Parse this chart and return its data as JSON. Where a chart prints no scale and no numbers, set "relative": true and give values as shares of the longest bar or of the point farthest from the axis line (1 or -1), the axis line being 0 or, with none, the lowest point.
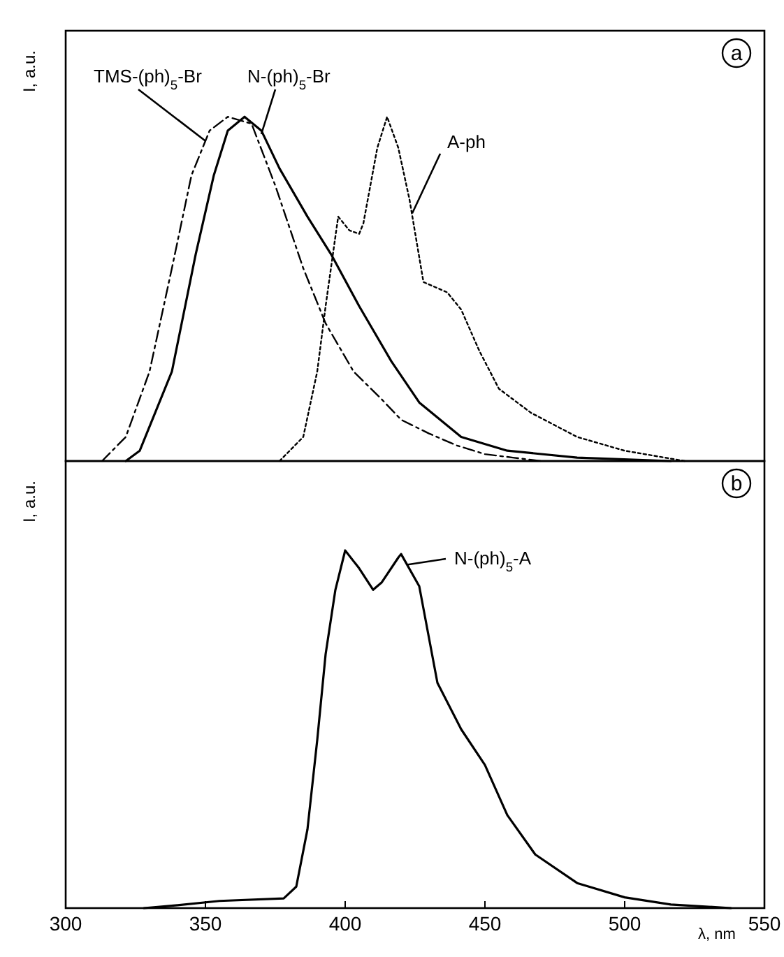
{
  "chart_data": [
    {
      "type": "line",
      "ylabel": "I, a.u.",
      "annotations": [
        "a"
      ],
      "relative": true,
      "xlim": [
        300,
        550
      ],
      "xticks": [
        300,
        350,
        400,
        450,
        500,
        550
      ],
      "tick_labels": false,
      "series": [
        {
          "name": "TMS-(ph)$_{5}$-Br",
          "color": "#000000",
          "line_style": "dashed",
          "x": [
            313,
            321.5,
            330,
            338,
            345,
            351.5,
            358,
            366.5,
            375,
            385,
            393,
            403,
            413,
            420,
            430,
            440,
            450,
            460,
            470
          ],
          "values": [
            0,
            0.07,
            0.26,
            0.56,
            0.83,
            0.96,
            1.0,
            0.98,
            0.8,
            0.56,
            0.4,
            0.26,
            0.18,
            0.12,
            0.08,
            0.045,
            0.02,
            0.01,
            0
          ]
        },
        {
          "name": "N-(ph)$_{5}$-Br",
          "color": "#000000",
          "line_style": "solid",
          "x": [
            321.5,
            326.5,
            338,
            346.5,
            353,
            358,
            364,
            370,
            376.5,
            386.5,
            395,
            405,
            416.5,
            426.5,
            441.5,
            458,
            483,
            516.5
          ],
          "values": [
            0,
            0.03,
            0.26,
            0.6,
            0.83,
            0.96,
            1.0,
            0.96,
            0.85,
            0.71,
            0.6,
            0.45,
            0.29,
            0.17,
            0.07,
            0.03,
            0.01,
            0
          ]
        },
        {
          "name": "A-ph",
          "color": "#000000",
          "line_style": "dotted",
          "x": [
            376.5,
            385,
            390,
            393,
            397.5,
            401.5,
            405,
            406.5,
            411.5,
            415,
            419,
            423,
            428,
            436.5,
            441.5,
            448,
            455,
            466.5,
            483,
            500,
            521.5
          ],
          "values": [
            0,
            0.07,
            0.26,
            0.45,
            0.71,
            0.67,
            0.66,
            0.69,
            0.91,
            1.0,
            0.91,
            0.76,
            0.52,
            0.49,
            0.44,
            0.32,
            0.21,
            0.14,
            0.07,
            0.03,
            0
          ]
        }
      ]
    },
    {
      "type": "line",
      "ylabel": "I, a.u.",
      "xlabel": "λ, nm",
      "annotations": [
        "b"
      ],
      "relative": true,
      "xlim": [
        300,
        550
      ],
      "xticks": [
        300,
        350,
        400,
        450,
        500,
        550
      ],
      "tick_labels": "x",
      "series": [
        {
          "name": "N-(ph)$_{5}$-A",
          "color": "#000000",
          "line_style": "solid",
          "x": [
            328,
            340,
            355,
            378,
            382.5,
            386.5,
            390,
            393,
            396.5,
            400,
            405,
            410,
            413,
            419,
            420,
            426.5,
            433,
            441.5,
            450,
            458,
            468,
            483,
            500,
            516.5,
            538
          ],
          "values": [
            0,
            0.008,
            0.02,
            0.027,
            0.06,
            0.22,
            0.47,
            0.71,
            0.89,
            1.0,
            0.95,
            0.89,
            0.91,
            0.98,
            0.99,
            0.9,
            0.63,
            0.5,
            0.4,
            0.26,
            0.15,
            0.07,
            0.03,
            0.01,
            0
          ]
        }
      ]
    }
  ]
}
